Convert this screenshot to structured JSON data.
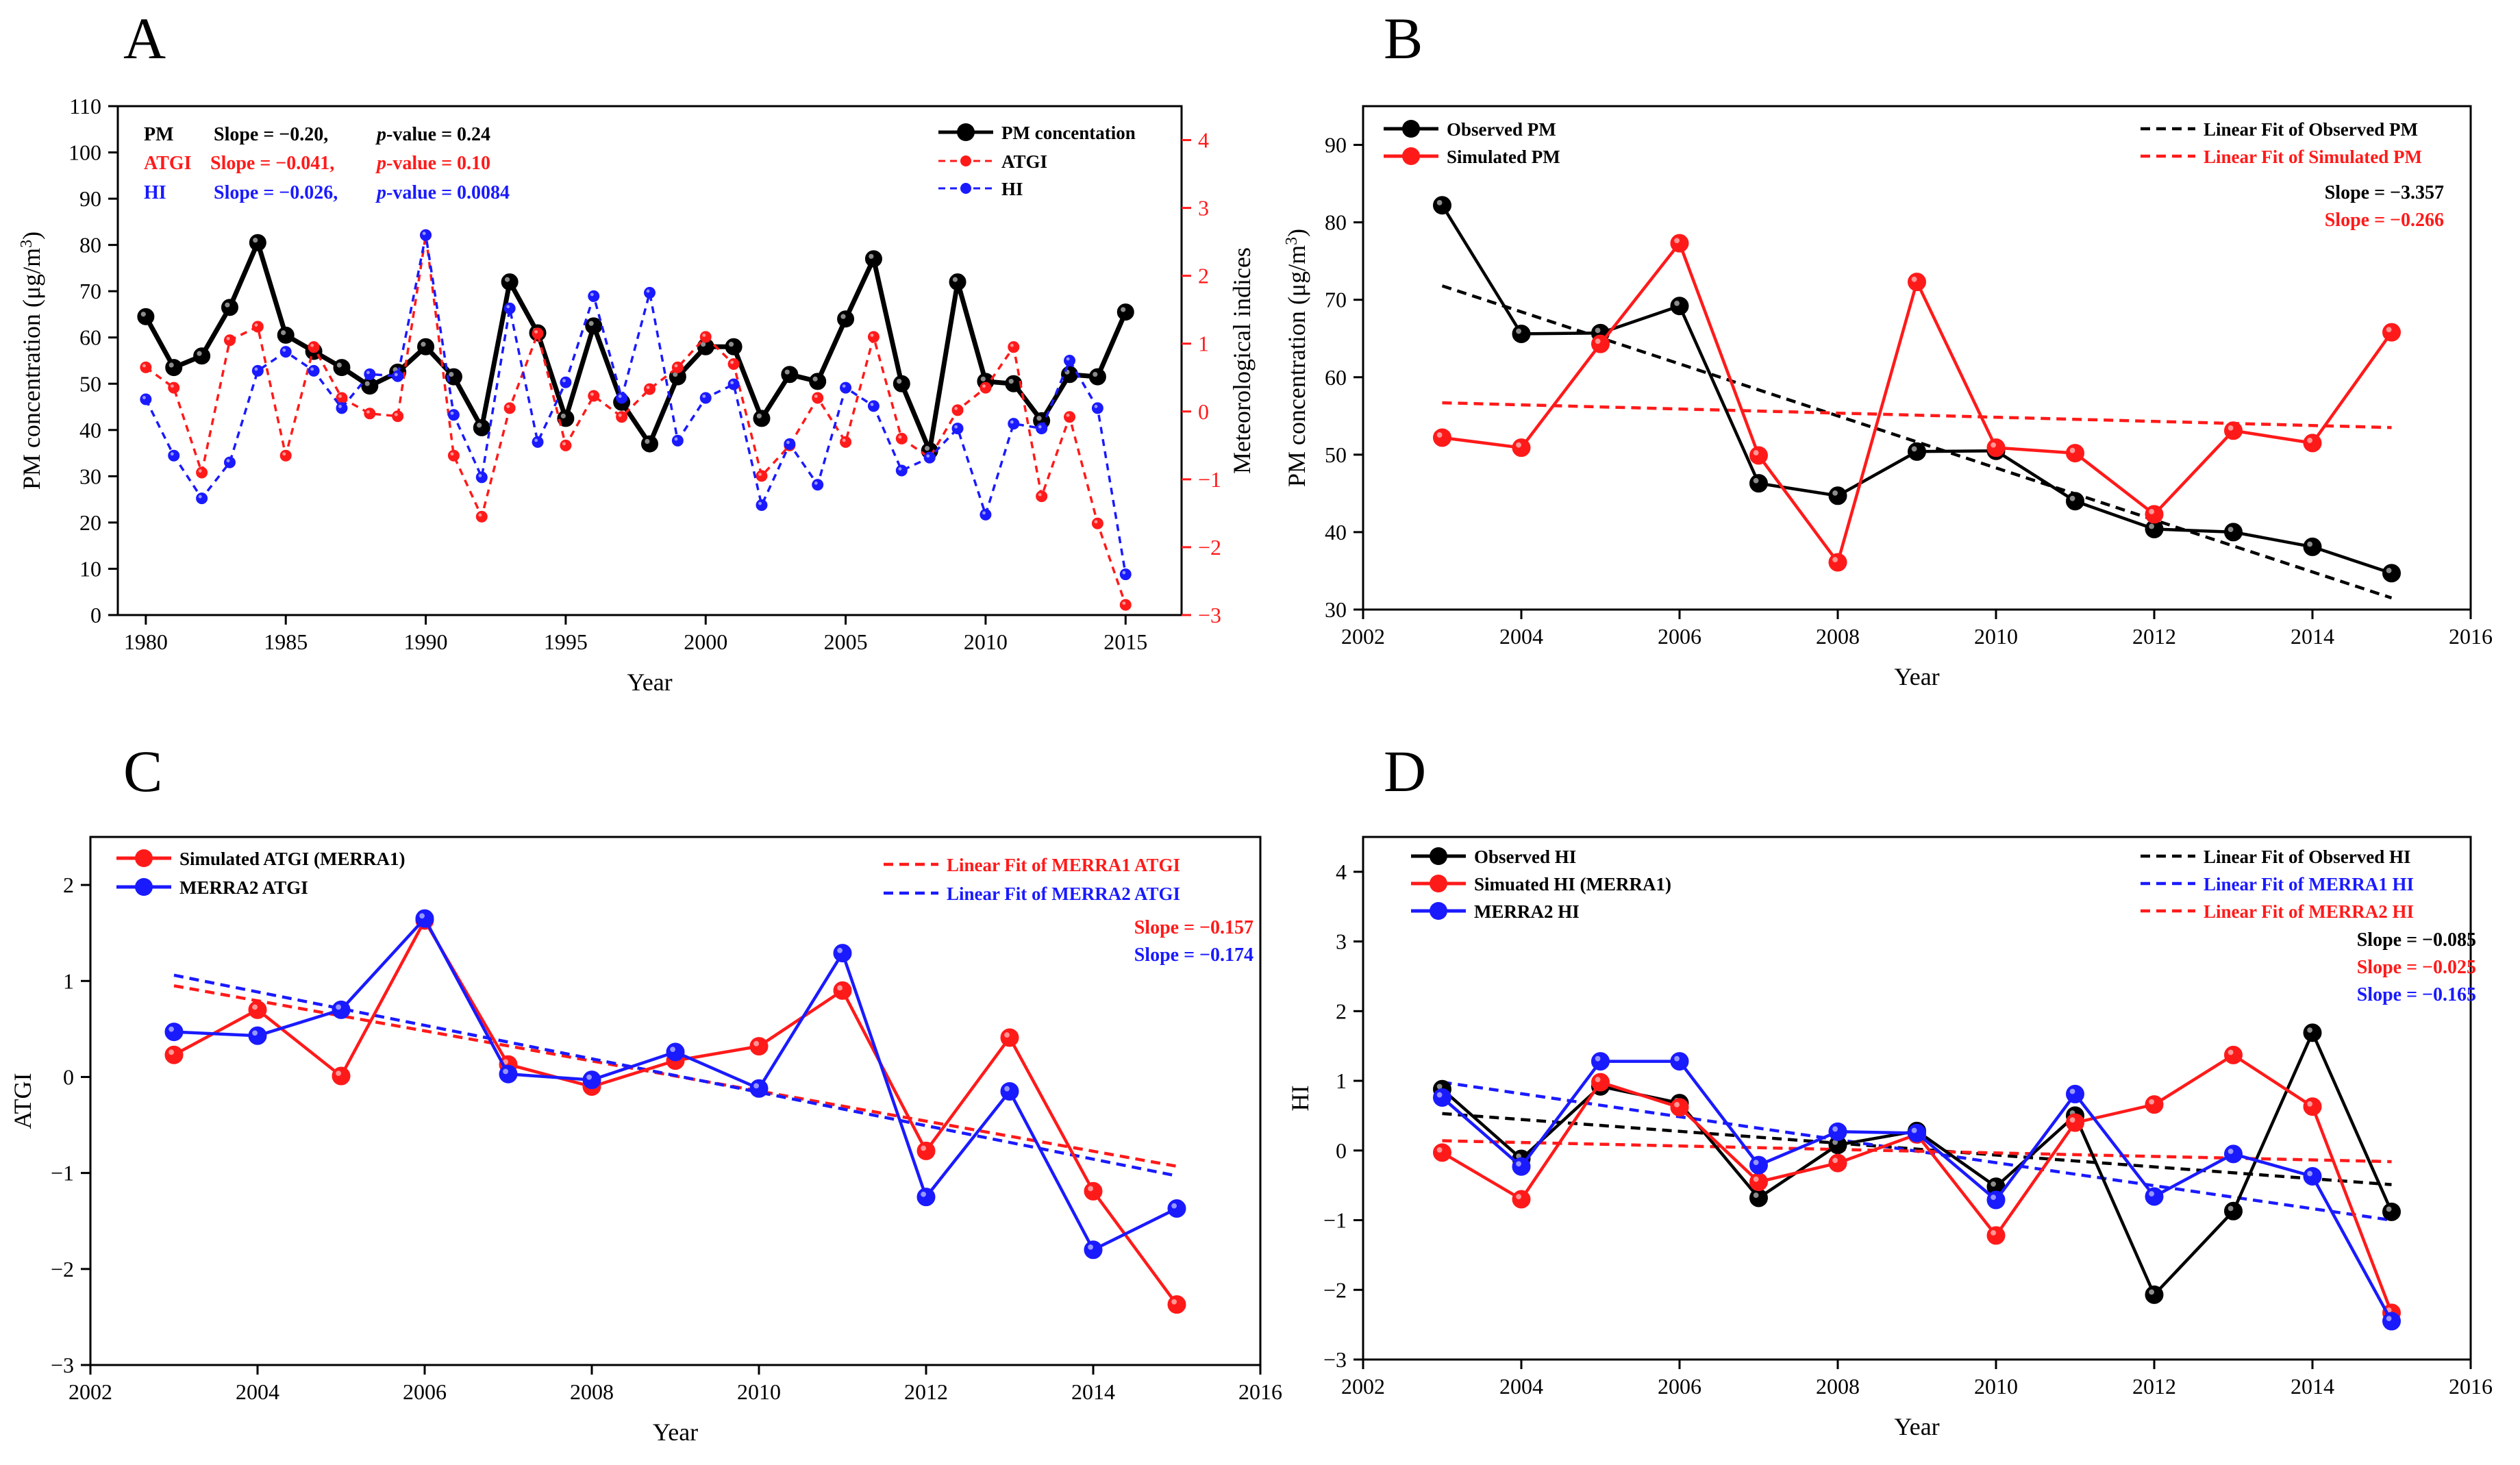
{
  "colors": {
    "black": "#000000",
    "red": "#ff1a1a",
    "blue": "#1a1aff"
  },
  "chart_data": [
    {
      "panel_label": "A",
      "type": "line",
      "xlabel": "Year",
      "ylabel": "PM concentration (μg/m3)",
      "ylabel_parts": [
        "PM concentration (μg/m",
        "3",
        ")"
      ],
      "y2label": "Meteorological indices",
      "xlim": [
        1979,
        2017
      ],
      "ylim": [
        0,
        110
      ],
      "y2lim": [
        -3,
        4.5
      ],
      "xticks": [
        1980,
        1985,
        1990,
        1995,
        2000,
        2005,
        2010,
        2015
      ],
      "yticks": [
        0,
        10,
        20,
        30,
        40,
        50,
        60,
        70,
        80,
        90,
        100,
        110
      ],
      "y2ticks": [
        -3,
        -2,
        -1,
        0,
        1,
        2,
        3,
        4
      ],
      "legend_position": "top-right",
      "x": [
        1980,
        1981,
        1982,
        1983,
        1984,
        1985,
        1986,
        1987,
        1988,
        1989,
        1990,
        1991,
        1992,
        1993,
        1994,
        1995,
        1996,
        1997,
        1998,
        1999,
        2000,
        2001,
        2002,
        2003,
        2004,
        2005,
        2006,
        2007,
        2008,
        2009,
        2010,
        2011,
        2012,
        2013,
        2014,
        2015
      ],
      "series": [
        {
          "name": "PM concentation",
          "axis": "left",
          "color": "black",
          "style": "solid",
          "values": [
            64.5,
            53.5,
            56,
            66.5,
            80.5,
            60.5,
            57,
            53.5,
            49.5,
            52.5,
            58,
            51.5,
            40.5,
            72,
            61,
            42.5,
            62.5,
            46,
            37,
            51.5,
            58,
            58,
            42.5,
            52,
            50.5,
            64,
            77,
            50,
            35.5,
            72,
            50.5,
            50,
            42,
            52,
            51.5,
            65.5
          ]
        },
        {
          "name": "ATGI",
          "axis": "right",
          "color": "red",
          "style": "dashed",
          "values": [
            0.65,
            0.35,
            -0.9,
            1.05,
            1.25,
            -0.65,
            0.95,
            0.2,
            -0.03,
            -0.07,
            2.6,
            -0.65,
            -1.55,
            0.05,
            1.15,
            -0.5,
            0.23,
            -0.08,
            0.33,
            0.65,
            1.1,
            0.7,
            -0.95,
            -0.5,
            0.2,
            -0.45,
            1.1,
            -0.4,
            -0.68,
            0.02,
            0.35,
            0.95,
            -1.25,
            -0.08,
            -1.65,
            -2.85
          ]
        },
        {
          "name": "HI",
          "axis": "right",
          "color": "blue",
          "style": "dashed",
          "values": [
            0.18,
            -0.65,
            -1.28,
            -0.75,
            0.6,
            0.88,
            0.6,
            0.05,
            0.55,
            0.52,
            2.6,
            -0.05,
            -0.97,
            1.52,
            -0.45,
            0.43,
            1.7,
            0.2,
            1.75,
            -0.43,
            0.2,
            0.4,
            -1.38,
            -0.48,
            -1.08,
            0.35,
            0.08,
            -0.87,
            -0.68,
            -0.25,
            -1.52,
            -0.18,
            -0.25,
            0.75,
            0.05,
            -2.4
          ]
        }
      ],
      "annotations": [
        {
          "label": "PM",
          "text": "Slope = −0.20,",
          "p_label": "p",
          "p_text": "-value = 0.24",
          "color": "black"
        },
        {
          "label": "ATGI",
          "text": "Slope = −0.041,",
          "p_label": "p",
          "p_text": "-value = 0.10",
          "color": "red"
        },
        {
          "label": "HI",
          "text": "Slope = −0.026,",
          "p_label": "p",
          "p_text": "-value = 0.0084",
          "color": "blue"
        }
      ]
    },
    {
      "panel_label": "B",
      "type": "line",
      "xlabel": "Year",
      "ylabel": "PM concentration (μg/m3)",
      "ylabel_parts": [
        "PM concentration (μg/m",
        "3",
        ")"
      ],
      "xlim": [
        2002,
        2016
      ],
      "ylim": [
        30,
        95
      ],
      "xticks": [
        2002,
        2004,
        2006,
        2008,
        2010,
        2012,
        2014,
        2016
      ],
      "yticks": [
        30,
        40,
        50,
        60,
        70,
        80,
        90
      ],
      "legend_position": "top-left",
      "fit_legend_position": "top-right",
      "x": [
        2003,
        2004,
        2005,
        2006,
        2007,
        2008,
        2009,
        2010,
        2011,
        2012,
        2013,
        2014,
        2015
      ],
      "series": [
        {
          "name": "Observed PM",
          "color": "black",
          "values": [
            82.2,
            65.6,
            65.7,
            69.2,
            46.3,
            44.7,
            50.4,
            50.5,
            44,
            40.4,
            40,
            38.1,
            34.7
          ]
        },
        {
          "name": "Simulated PM",
          "color": "red",
          "values": [
            52.2,
            50.9,
            64.3,
            77.3,
            49.9,
            36.1,
            72.3,
            50.9,
            50.2,
            42.3,
            53.1,
            51.5,
            65.8
          ]
        }
      ],
      "fits": [
        {
          "name": "Linear Fit of Observed PM",
          "color": "black",
          "from": [
            2003,
            71.8
          ],
          "to": [
            2015,
            31.5
          ]
        },
        {
          "name": "Linear Fit of Simulated PM",
          "color": "red",
          "from": [
            2003,
            56.7
          ],
          "to": [
            2015,
            53.5
          ]
        }
      ],
      "annotations": [
        {
          "text": "Slope = −3.357",
          "color": "black"
        },
        {
          "text": "Slope = −0.266",
          "color": "red"
        }
      ]
    },
    {
      "panel_label": "C",
      "type": "line",
      "xlabel": "Year",
      "ylabel": "ATGI",
      "xlim": [
        2002,
        2016
      ],
      "ylim": [
        -3,
        2.5
      ],
      "xticks": [
        2002,
        2004,
        2006,
        2008,
        2010,
        2012,
        2014,
        2016
      ],
      "yticks": [
        -3,
        -2,
        -1,
        0,
        1,
        2
      ],
      "legend_position": "top-left",
      "fit_legend_position": "top-right",
      "x": [
        2003,
        2004,
        2005,
        2006,
        2007,
        2008,
        2009,
        2010,
        2011,
        2012,
        2013,
        2014,
        2015
      ],
      "series": [
        {
          "name": "Simulated ATGI (MERRA1)",
          "color": "red",
          "values": [
            0.23,
            0.7,
            0.01,
            1.63,
            0.13,
            -0.1,
            0.17,
            0.32,
            0.9,
            -0.77,
            0.41,
            -1.19,
            -2.37
          ]
        },
        {
          "name": "MERRA2 ATGI",
          "color": "blue",
          "values": [
            0.47,
            0.43,
            0.7,
            1.65,
            0.03,
            -0.03,
            0.26,
            -0.12,
            1.29,
            -1.25,
            -0.15,
            -1.8,
            -1.37
          ]
        }
      ],
      "fits": [
        {
          "name": "Linear Fit of MERRA1 ATGI",
          "color": "red",
          "from": [
            2003,
            0.95
          ],
          "to": [
            2015,
            -0.93
          ]
        },
        {
          "name": "Linear Fit of MERRA2 ATGI",
          "color": "blue",
          "from": [
            2003,
            1.06
          ],
          "to": [
            2015,
            -1.03
          ]
        }
      ],
      "annotations": [
        {
          "text": "Slope = −0.157",
          "color": "red"
        },
        {
          "text": "Slope = −0.174",
          "color": "blue"
        }
      ]
    },
    {
      "panel_label": "D",
      "type": "line",
      "xlabel": "Year",
      "ylabel": "HI",
      "xlim": [
        2002,
        2016
      ],
      "ylim": [
        -3,
        4.5
      ],
      "xticks": [
        2002,
        2004,
        2006,
        2008,
        2010,
        2012,
        2014,
        2016
      ],
      "yticks": [
        -3,
        -2,
        -1,
        0,
        1,
        2,
        3,
        4
      ],
      "legend_position": "top-left",
      "fit_legend_position": "top-right",
      "x": [
        2003,
        2004,
        2005,
        2006,
        2007,
        2008,
        2009,
        2010,
        2011,
        2012,
        2013,
        2014,
        2015
      ],
      "series": [
        {
          "name": "Observed HI",
          "color": "black",
          "values": [
            0.88,
            -0.12,
            0.92,
            0.68,
            -0.68,
            0.08,
            0.28,
            -0.52,
            0.5,
            -2.07,
            -0.87,
            1.69,
            -0.88
          ]
        },
        {
          "name": "Simuated HI (MERRA1)",
          "color": "red",
          "values": [
            -0.03,
            -0.7,
            0.98,
            0.62,
            -0.45,
            -0.18,
            0.23,
            -1.22,
            0.4,
            0.66,
            1.37,
            0.63,
            -2.33
          ]
        },
        {
          "name": "MERRA2 HI",
          "color": "blue",
          "values": [
            0.76,
            -0.23,
            1.28,
            1.28,
            -0.21,
            0.27,
            0.25,
            -0.71,
            0.81,
            -0.66,
            -0.05,
            -0.37,
            -2.45
          ]
        }
      ],
      "fits": [
        {
          "name": "Linear Fit of Observed HI",
          "color": "black",
          "from": [
            2003,
            0.53
          ],
          "to": [
            2015,
            -0.49
          ]
        },
        {
          "name": "Linear Fit of MERRA1 HI",
          "color": "blue",
          "from": [
            2003,
            0.98
          ],
          "to": [
            2015,
            -1.0
          ]
        },
        {
          "name": "Linear Fit of MERRA2 HI",
          "color": "red",
          "from": [
            2003,
            0.14
          ],
          "to": [
            2015,
            -0.16
          ]
        }
      ],
      "annotations": [
        {
          "text": "Slope = −0.085",
          "color": "black"
        },
        {
          "text": "Slope = −0.025",
          "color": "red"
        },
        {
          "text": "Slope = −0.165",
          "color": "blue"
        }
      ]
    }
  ]
}
